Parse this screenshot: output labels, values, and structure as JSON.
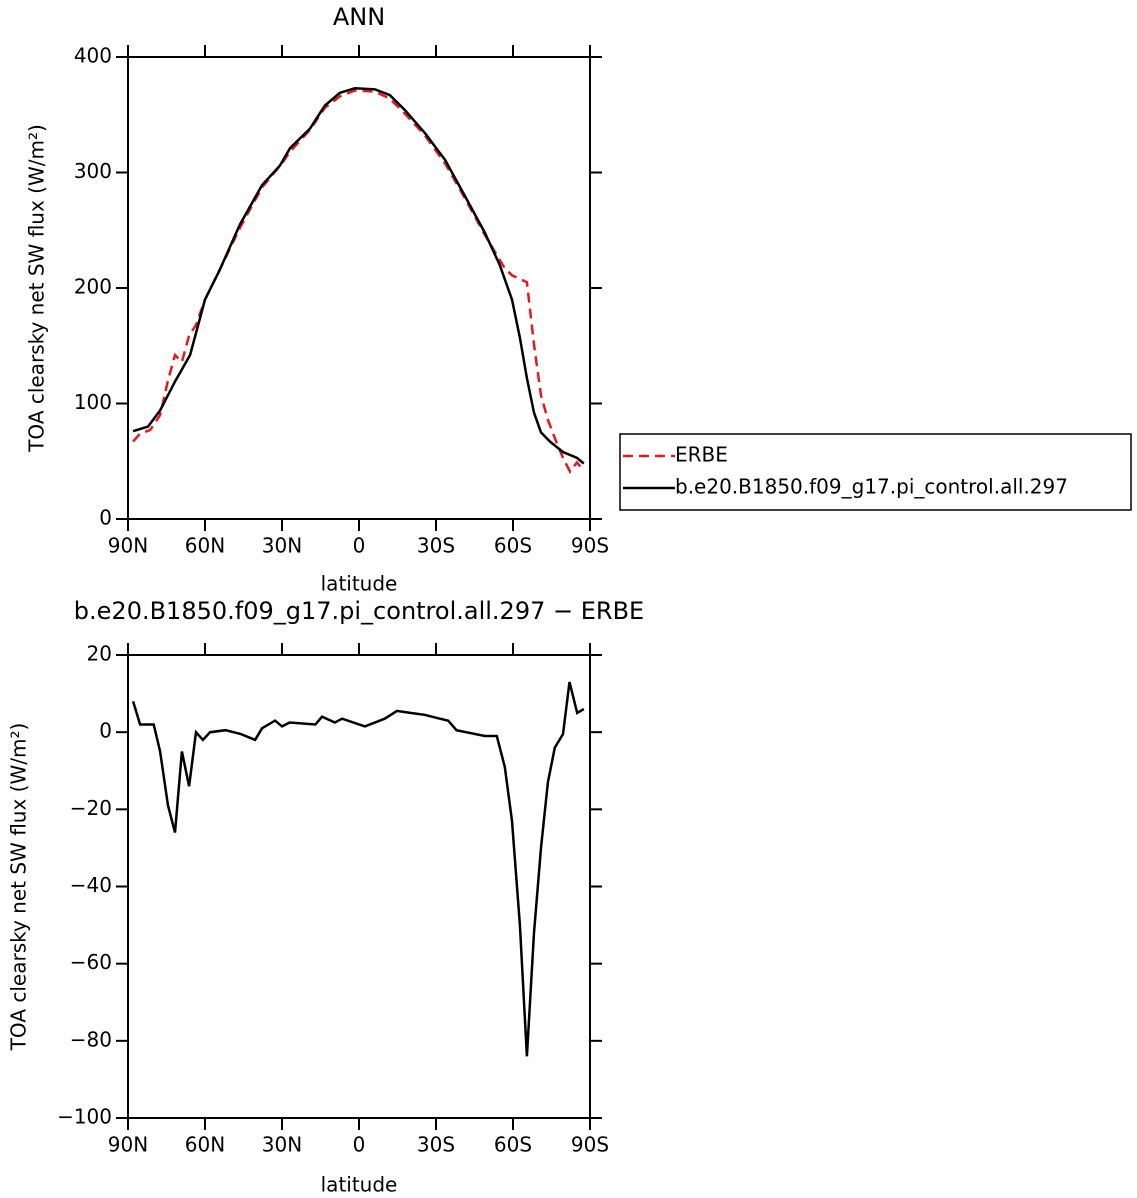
{
  "chart_data": [
    {
      "type": "line",
      "title": "ANN",
      "xlabel": "latitude",
      "ylabel": "TOA clearsky net SW flux (W/m²)",
      "xlim": [
        90,
        -90
      ],
      "xticks": [
        {
          "value": 90,
          "label": "90N"
        },
        {
          "value": 60,
          "label": "60N"
        },
        {
          "value": 30,
          "label": "30N"
        },
        0,
        {
          "value": -30,
          "label": "30S"
        },
        {
          "value": -60,
          "label": "60S"
        },
        {
          "value": -90,
          "label": "90S"
        }
      ],
      "ylim": [
        0,
        400
      ],
      "yticks": [
        0,
        100,
        200,
        300,
        400
      ],
      "legend": "right",
      "series": [
        {
          "name": "ERBE",
          "color": "#e41a1c",
          "dash": "dashed",
          "x": [
            88,
            85.3,
            81.4,
            77.5,
            74.4,
            71.7,
            69,
            66.2,
            63.5,
            60,
            54.2,
            46.4,
            37.8,
            30,
            26.9,
            19.1,
            13.3,
            7.4,
            1.6,
            -6.2,
            -12,
            -17.9,
            -25.7,
            -33.5,
            -41.2,
            -49,
            -56.8,
            -59.6,
            -65.4,
            -68.2,
            -70.9,
            -73.6,
            -76.3,
            -79.5,
            -82.2,
            -84.9,
            -87.6
          ],
          "values": [
            67,
            74,
            77,
            90,
            120,
            142,
            136,
            159,
            168,
            190,
            216,
            252,
            287,
            308,
            318,
            337,
            356,
            366,
            371,
            370,
            364,
            351,
            332,
            308,
            278,
            246,
            217,
            211,
            205,
            151,
            107,
            86,
            70,
            53,
            41,
            49,
            42
          ]
        },
        {
          "name": "b.e20.B1850.f09_g17.pi_control.all.297",
          "color": "#000000",
          "dash": "solid",
          "x": [
            88,
            82.2,
            77.5,
            71.7,
            65.8,
            60,
            54.2,
            46.4,
            37.8,
            30.8,
            26.9,
            19.1,
            13.3,
            7.4,
            1.6,
            -6.2,
            -12,
            -17.9,
            -25.7,
            -33.5,
            -41.2,
            -49,
            -54.8,
            -59.6,
            -62.7,
            -65.4,
            -68.2,
            -70.9,
            -74.4,
            -79.5,
            -84.9,
            -87.6
          ],
          "values": [
            76,
            80,
            94,
            119,
            142,
            190,
            216,
            255,
            289,
            306,
            321,
            338,
            358,
            369,
            373,
            372,
            367,
            354,
            334,
            311,
            280,
            248,
            220,
            190,
            157,
            122,
            92,
            75,
            67,
            58,
            53,
            48
          ]
        }
      ]
    },
    {
      "type": "line",
      "title": "b.e20.B1850.f09_g17.pi_control.all.297 − ERBE",
      "xlabel": "latitude",
      "ylabel": "TOA clearsky net SW flux (W/m²)",
      "xlim": [
        90,
        -90
      ],
      "xticks": [
        {
          "value": 90,
          "label": "90N"
        },
        {
          "value": 60,
          "label": "60N"
        },
        {
          "value": 30,
          "label": "30N"
        },
        0,
        {
          "value": -30,
          "label": "30S"
        },
        {
          "value": -60,
          "label": "60S"
        },
        {
          "value": -90,
          "label": "90S"
        }
      ],
      "ylim": [
        -100,
        20
      ],
      "yticks": [
        {
          "value": -100,
          "label": "−100"
        },
        {
          "value": -80,
          "label": "−80"
        },
        {
          "value": -60,
          "label": "−60"
        },
        {
          "value": -40,
          "label": "−40"
        },
        {
          "value": -20,
          "label": "−20"
        },
        0,
        20
      ],
      "series": [
        {
          "color": "#000000",
          "dash": "solid",
          "x": [
            88,
            85.3,
            80,
            77.5,
            74.4,
            71.7,
            69,
            66.2,
            63.5,
            60.8,
            58,
            52,
            46,
            40.5,
            37.8,
            32.7,
            30,
            27,
            17,
            14.4,
            9.4,
            6.6,
            -2.3,
            -10,
            -14.8,
            -20,
            -25.5,
            -31.5,
            -34.7,
            -38,
            -49,
            -53.7,
            -56.8,
            -59.6,
            -62.7,
            -65.4,
            -68.2,
            -70.9,
            -73.6,
            -76.3,
            -79.5,
            -82,
            -85,
            -87.6
          ],
          "values": [
            8,
            2,
            2,
            -5,
            -19,
            -26,
            -5,
            -14,
            0,
            -2,
            0,
            0.5,
            -0.5,
            -2,
            1,
            3,
            1.5,
            2.5,
            2,
            4,
            2.5,
            3.5,
            1.5,
            3.5,
            5.5,
            5,
            4.5,
            3.5,
            3,
            0.5,
            -1,
            -1,
            -9,
            -23,
            -50,
            -84,
            -52,
            -30,
            -13,
            -4,
            -0.5,
            13,
            5,
            6
          ]
        }
      ]
    }
  ]
}
